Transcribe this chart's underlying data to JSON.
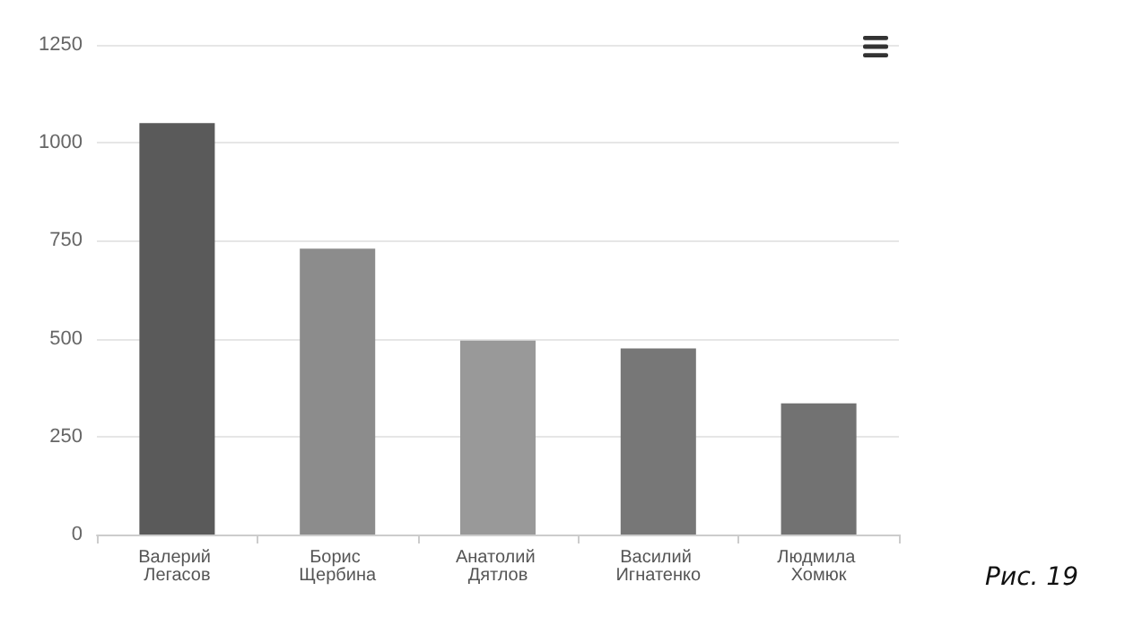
{
  "chart_data": {
    "type": "bar",
    "categories": [
      "Валерий Легасов",
      "Борис Щербина",
      "Анатолий Дятлов",
      "Василий Игнатенко",
      "Людмила Хомюк"
    ],
    "values": [
      1050,
      730,
      495,
      475,
      335
    ],
    "colors": [
      "#5a5a5a",
      "#8c8c8c",
      "#999999",
      "#777777",
      "#727272"
    ],
    "ylim": [
      0,
      1250
    ],
    "yticks": [
      0,
      250,
      500,
      750,
      1000,
      1250
    ],
    "grid": "y",
    "annotations": [
      "Рис. 19"
    ]
  }
}
